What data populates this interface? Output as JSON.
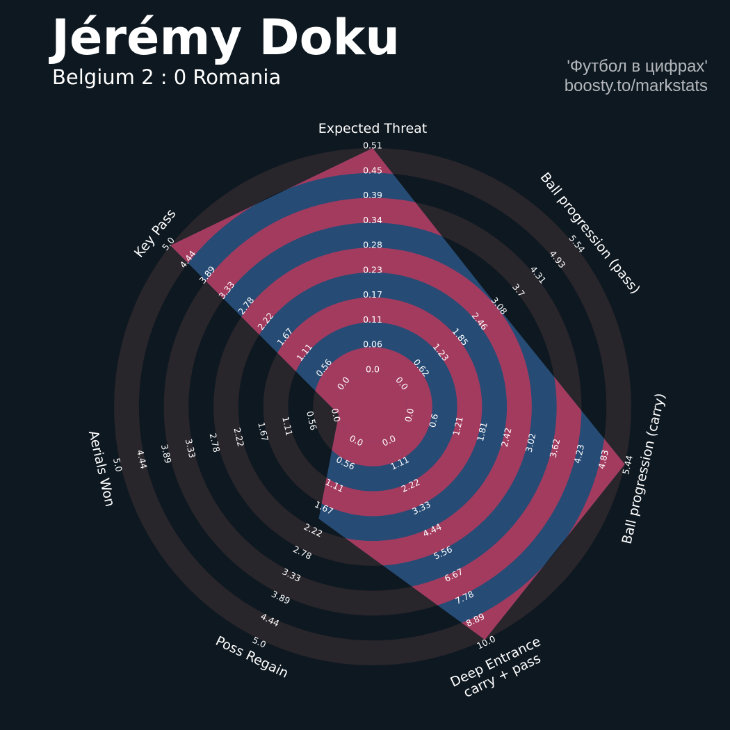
{
  "header": {
    "title": "Jérémy Doku",
    "subtitle": "Belgium 2 : 0 Romania",
    "credit_line1": "'Футбол в цифрах'",
    "credit_line2": "boosty.to/markstats"
  },
  "chart_data": {
    "type": "radar",
    "params": [
      {
        "name": "Expected Threat",
        "value": 0.51,
        "ticks": [
          "0.0",
          "0.06",
          "0.11",
          "0.17",
          "0.23",
          "0.28",
          "0.34",
          "0.39",
          "0.45",
          "0.51"
        ]
      },
      {
        "name": "Ball progression (pass)",
        "value": 3.1,
        "ticks": [
          "0.0",
          "0.62",
          "1.23",
          "1.85",
          "2.46",
          "3.08",
          "3.7",
          "4.31",
          "4.93",
          "5.54"
        ]
      },
      {
        "name": "Ball progression (carry)",
        "value": 5.44,
        "ticks": [
          "0.0",
          "0.6",
          "1.21",
          "1.81",
          "2.42",
          "3.02",
          "3.62",
          "4.23",
          "4.83",
          "5.44"
        ]
      },
      {
        "name": "Deep Entrance\ncarry + pass",
        "value": 10.0,
        "ticks": [
          "0.0",
          "1.11",
          "2.22",
          "3.33",
          "4.44",
          "5.56",
          "6.67",
          "7.78",
          "8.89",
          "10.0"
        ]
      },
      {
        "name": "Poss Regain",
        "value": 2.0,
        "ticks": [
          "0.0",
          "0.56",
          "1.11",
          "1.67",
          "2.22",
          "2.78",
          "3.33",
          "3.89",
          "4.44",
          "5.0"
        ]
      },
      {
        "name": "Aerials Won",
        "value": 0.0,
        "ticks": [
          "0.0",
          "0.56",
          "1.11",
          "1.67",
          "2.22",
          "2.78",
          "3.33",
          "3.89",
          "4.44",
          "5.0"
        ]
      },
      {
        "name": "Key Pass",
        "value": 5.0,
        "ticks": [
          "0.0",
          "0.56",
          "1.11",
          "1.67",
          "2.22",
          "2.78",
          "3.33",
          "3.89",
          "4.44",
          "5.0"
        ]
      }
    ],
    "colors": {
      "background": "#0e1820",
      "ring_outside": "#28252b",
      "ring_inside": "#a33b5f",
      "polygon": "#264b75",
      "text": "#ffffff"
    }
  }
}
